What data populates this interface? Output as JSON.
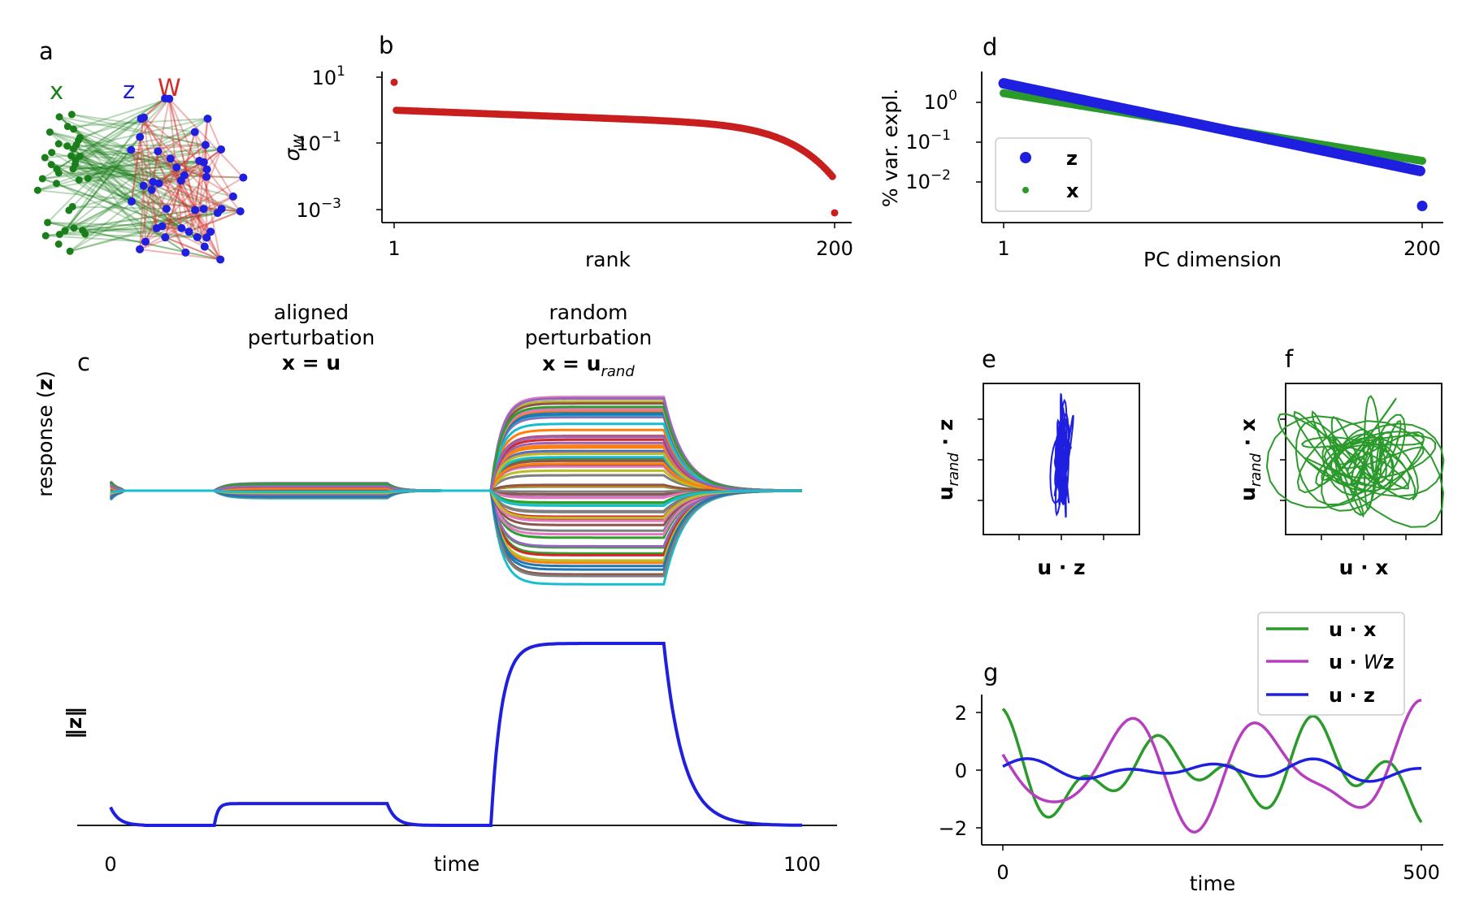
{
  "panels": {
    "a": {
      "label": "a",
      "layer_labels": {
        "x": "x",
        "z": "z",
        "W": "W"
      },
      "colors": {
        "x": "#1a7f1a",
        "z": "#1f1fe0",
        "W": "#d42a2a"
      }
    },
    "b": {
      "label": "b",
      "chart_data": {
        "type": "scatter",
        "xlabel": "rank",
        "ylabel": "σ_W",
        "ylabel_main": "σ",
        "ylabel_sub": "W",
        "x_ticks": [
          "1",
          "200"
        ],
        "y_ticks": [
          {
            "base": "10",
            "exp": "1"
          },
          {
            "base": "10",
            "exp": "−1"
          },
          {
            "base": "10",
            "exp": "−3"
          }
        ],
        "yscale": "log",
        "xlim": [
          1,
          200
        ],
        "ylim_log10": [
          -3.2,
          1.2
        ],
        "color": "#c81e1e",
        "n_points": 200,
        "first_value": 7.0,
        "second_value": 1.0,
        "value_at_150": 0.2,
        "value_at_199": 0.006,
        "last_value": 0.0008
      }
    },
    "d": {
      "label": "d",
      "chart_data": {
        "type": "scatter",
        "xlabel": "PC dimension",
        "ylabel": "% var. expl.",
        "x_ticks": [
          "1",
          "200"
        ],
        "y_ticks": [
          {
            "base": "10",
            "exp": "0"
          },
          {
            "base": "10",
            "exp": "−1"
          },
          {
            "base": "10",
            "exp": "−2"
          }
        ],
        "yscale": "log",
        "xlim": [
          1,
          200
        ],
        "ylim_log10": [
          -2.9,
          0.8
        ],
        "legend_placement": "lower-left",
        "series": [
          {
            "name": "z",
            "color": "#1f1fe0",
            "first_value": 3.0,
            "value_at_50": 0.7,
            "value_at_150": 0.1,
            "value_at_199": 0.018,
            "last_value": 0.0025
          },
          {
            "name": "x",
            "color": "#2a9a2a",
            "first_value": 1.7,
            "value_at_50": 0.7,
            "value_at_150": 0.15,
            "last_value": 0.035
          }
        ]
      }
    },
    "c": {
      "label": "c",
      "annotations": {
        "aligned": {
          "line1": "aligned",
          "line2": "perturbation",
          "eq": "x = u"
        },
        "random": {
          "line1": "random",
          "line2": "perturbation",
          "eq": "x = u",
          "eq_sub": "rand"
        }
      },
      "top_ylabel": "response (z)",
      "top_ylabel_main": "response (",
      "top_ylabel_bold": "z",
      "top_ylabel_end": ")",
      "bottom_ylabel": "‖z‖",
      "xlabel": "time",
      "x_ticks": [
        "0",
        "100"
      ],
      "chart_data": {
        "type": "line",
        "xlim": [
          0,
          100
        ],
        "aligned_window": [
          15,
          40
        ],
        "random_window": [
          55,
          80
        ],
        "norm_trace": {
          "color": "#1f1fe0",
          "initial_value": 0.1,
          "aligned_plateau": 0.12,
          "random_plateau": 1.0
        },
        "traces_palette": [
          "#1f77b4",
          "#ff7f0e",
          "#2ca02c",
          "#d62728",
          "#9467bd",
          "#8c564b",
          "#e377c2",
          "#7f7f7f",
          "#bcbd22",
          "#17becf"
        ]
      }
    },
    "e": {
      "label": "e",
      "xlabel": "u · z",
      "ylabel_main": "u",
      "ylabel_sub": "rand",
      "ylabel_end": " · z",
      "color": "#1f1fe0"
    },
    "f": {
      "label": "f",
      "xlabel": "u · x",
      "ylabel_main": "u",
      "ylabel_sub": "rand",
      "ylabel_end": " · x",
      "color": "#2a9a2a"
    },
    "g": {
      "label": "g",
      "chart_data": {
        "type": "line",
        "xlabel": "time",
        "x_ticks": [
          "0",
          "500"
        ],
        "y_ticks": [
          "2",
          "0",
          "−2"
        ],
        "xlim": [
          0,
          500
        ],
        "ylim": [
          -2.6,
          2.6
        ],
        "legend_placement": "top-right",
        "series": [
          {
            "name": "u · x",
            "name_main": "u · x",
            "color": "#2a9a2a",
            "amplitude": 1.8
          },
          {
            "name": "u · Wz",
            "name_main": "u · ",
            "name_italic": "W",
            "name_end": "z",
            "color": "#b53fbf",
            "amplitude": 2.3
          },
          {
            "name": "u · z",
            "name_main": "u · z",
            "color": "#1f1fe0",
            "amplitude": 0.35
          }
        ]
      }
    }
  }
}
